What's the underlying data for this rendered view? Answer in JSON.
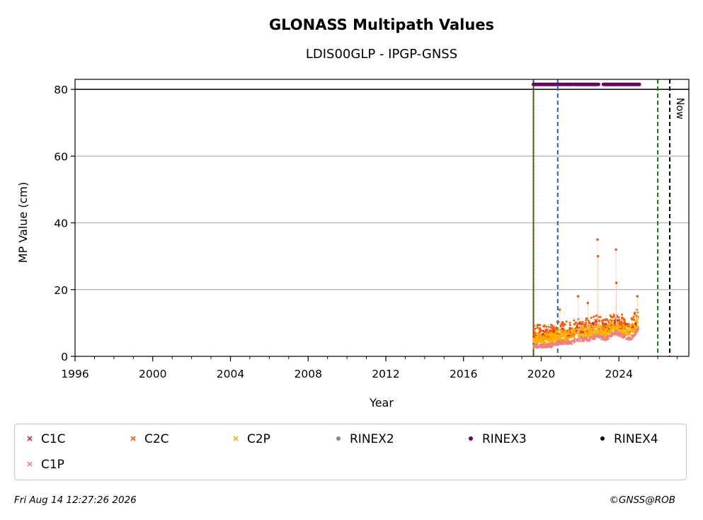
{
  "chart_data": {
    "type": "scatter",
    "title": "GLONASS Multipath Values",
    "subtitle": "LDIS00GLP - IPGP-GNSS",
    "xlabel": "Year",
    "ylabel": "MP Value (cm)",
    "xlim": [
      1996,
      2027.6
    ],
    "ylim": [
      0,
      83
    ],
    "x_ticks": [
      1996,
      2000,
      2004,
      2008,
      2012,
      2016,
      2020,
      2024
    ],
    "y_ticks": [
      0,
      20,
      40,
      60,
      80
    ],
    "grid": "horizontal",
    "reference_line": 80,
    "vertical_lines": [
      {
        "x": 2019.6,
        "color": "#008000",
        "style": "solid"
      },
      {
        "x": 2019.6,
        "color": "#d62728",
        "style": "dotted"
      },
      {
        "x": 2020.85,
        "color": "#1f5fbf",
        "style": "dashed"
      },
      {
        "x": 2026.0,
        "color": "#008000",
        "style": "dashed"
      },
      {
        "x": 2026.62,
        "color": "#000000",
        "style": "dashed",
        "label": "Now"
      }
    ],
    "rinex3_segments": [
      [
        2019.6,
        2021.1
      ],
      [
        2021.2,
        2021.55
      ],
      [
        2021.65,
        2022.95
      ],
      [
        2023.2,
        2025.05
      ]
    ],
    "series": [
      {
        "name": "C1C",
        "color": "#d62728",
        "marker": "x"
      },
      {
        "name": "C2C",
        "color": "#ff5a00",
        "marker": "x"
      },
      {
        "name": "C2P",
        "color": "#ffb000",
        "marker": "x"
      },
      {
        "name": "RINEX2",
        "color": "#7f7fbf",
        "marker": "o"
      },
      {
        "name": "RINEX3",
        "color": "#6a0066",
        "marker": "o"
      },
      {
        "name": "RINEX4",
        "color": "#1a0026",
        "marker": "o"
      },
      {
        "name": "C1P",
        "color": "#f08080",
        "marker": "x"
      }
    ],
    "data_summary": {
      "x_range": [
        2019.6,
        2025.0
      ],
      "baseline": [
        {
          "x": 2019.6,
          "y": 5
        },
        {
          "x": 2020.5,
          "y": 5
        },
        {
          "x": 2020.9,
          "y": 6
        },
        {
          "x": 2021.5,
          "y": 6
        },
        {
          "x": 2022.0,
          "y": 7
        },
        {
          "x": 2022.5,
          "y": 7
        },
        {
          "x": 2022.9,
          "y": 8
        },
        {
          "x": 2023.3,
          "y": 7
        },
        {
          "x": 2023.8,
          "y": 9
        },
        {
          "x": 2024.2,
          "y": 8
        },
        {
          "x": 2024.6,
          "y": 7
        },
        {
          "x": 2025.0,
          "y": 10
        }
      ],
      "peaks": [
        {
          "x": 2020.95,
          "y": 14
        },
        {
          "x": 2021.9,
          "y": 18
        },
        {
          "x": 2022.4,
          "y": 16
        },
        {
          "x": 2022.9,
          "y": 35
        },
        {
          "x": 2022.92,
          "y": 30
        },
        {
          "x": 2023.85,
          "y": 32
        },
        {
          "x": 2023.87,
          "y": 22
        },
        {
          "x": 2024.95,
          "y": 18
        }
      ]
    }
  },
  "legend": {
    "items": [
      "C1C",
      "C2C",
      "C2P",
      "RINEX2",
      "RINEX3",
      "RINEX4",
      "C1P"
    ]
  },
  "now_label": "Now",
  "footer": {
    "timestamp": "Fri Aug 14 12:27:26 2026",
    "credit": "©GNSS@ROB"
  }
}
